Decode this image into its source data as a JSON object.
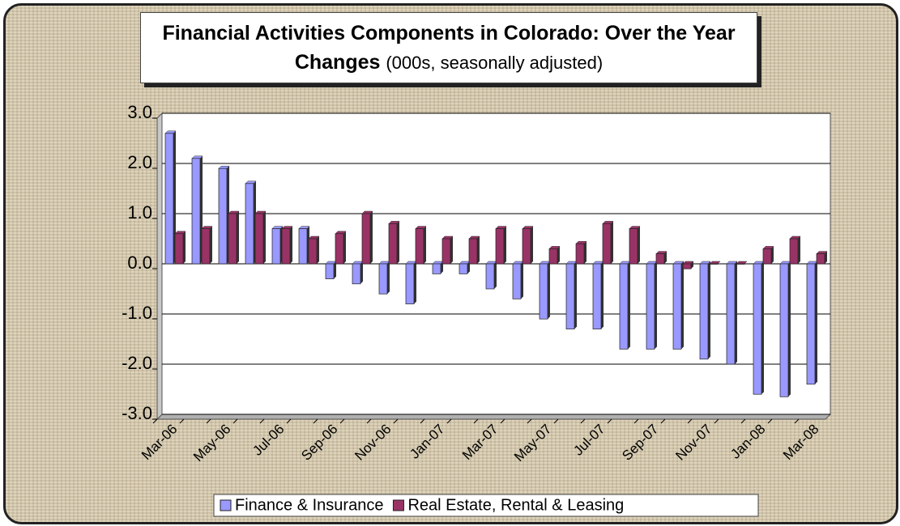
{
  "chart_data": {
    "type": "bar",
    "title": "Financial Activities Components in Colorado: Over the Year Changes",
    "subtitle": "(000s, seasonally adjusted)",
    "categories": [
      "Mar-06",
      null,
      "May-06",
      null,
      "Jul-06",
      null,
      "Sep-06",
      null,
      "Nov-06",
      null,
      "Jan-07",
      null,
      "Mar-07",
      null,
      "May-07",
      null,
      "Jul-07",
      null,
      "Sep-07",
      null,
      "Nov-07",
      null,
      "Jan-08",
      null,
      "Mar-08"
    ],
    "series": [
      {
        "name": "Finance & Insurance",
        "color": "#9999ff",
        "values": [
          2.6,
          2.1,
          1.9,
          1.6,
          0.7,
          0.7,
          -0.3,
          -0.4,
          -0.6,
          -0.8,
          -0.2,
          -0.2,
          -0.5,
          -0.7,
          -1.1,
          -1.3,
          -1.3,
          -1.7,
          -1.7,
          -1.7,
          -1.9,
          -2.0,
          -2.6,
          -2.65,
          -2.4
        ]
      },
      {
        "name": "Real Estate, Rental & Leasing",
        "color": "#993366",
        "values": [
          0.6,
          0.7,
          1.0,
          1.0,
          0.7,
          0.5,
          0.6,
          1.0,
          0.8,
          0.7,
          0.5,
          0.5,
          0.7,
          0.7,
          0.3,
          0.4,
          0.8,
          0.7,
          0.2,
          -0.1,
          0.0,
          0.0,
          0.3,
          0.5,
          0.2
        ]
      }
    ],
    "ylim": [
      -3,
      3
    ],
    "yticks": [
      {
        "value": -3,
        "label": "-3.0"
      },
      {
        "value": -2,
        "label": "-2.0"
      },
      {
        "value": -1,
        "label": "-1.0"
      },
      {
        "value": 0,
        "label": "0.0"
      },
      {
        "value": 1,
        "label": "1.0"
      },
      {
        "value": 2,
        "label": "2.0"
      },
      {
        "value": 3,
        "label": "3.0"
      }
    ],
    "grid": true,
    "legend": "bottom"
  }
}
